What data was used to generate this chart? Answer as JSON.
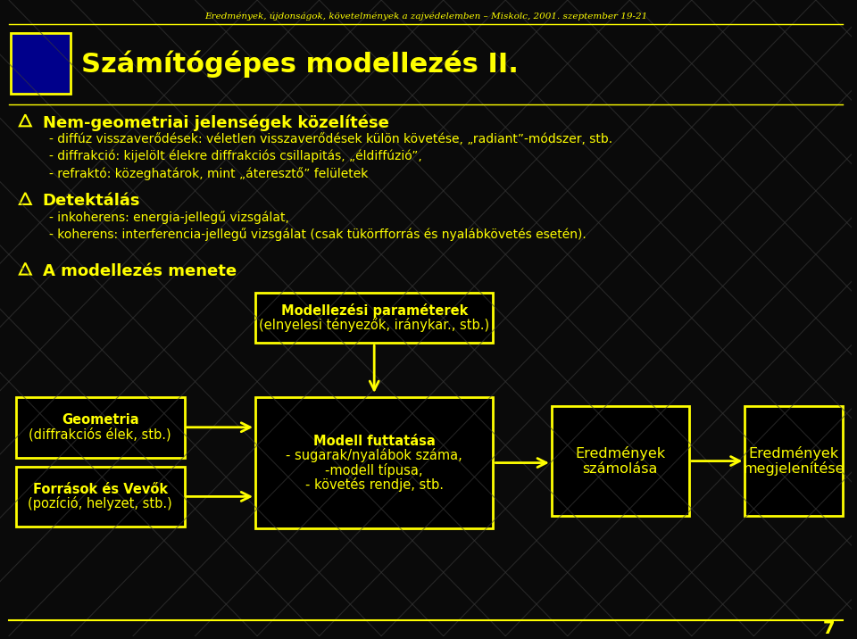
{
  "bg_color": "#0a0a0a",
  "title_text": "Számítógépes modellezés II.",
  "header_text": "Eredmények, újdonságok, követelmények a zajvédelemben – Miskolc, 2001. szeptember 19-21",
  "yellow": "#ffff00",
  "bullet1_title": "Nem-geometriai jelenségek közelítése",
  "bullet1_lines": [
    "- diffúz visszaverődések: véletlen visszaverődések külön követése, „radiant”-módszer, stb.",
    "- diffrakció: kijelölt élekre diffrakciós csillapitás, „éldiffúzió”,",
    "- refraktó: közeghatárok, mint „áteresztő” felületek"
  ],
  "bullet2_title": "Detektálás",
  "bullet2_lines": [
    "- inkoherens: energia-jellegű vizsgálat,",
    "- koherens: interferencia-jellegű vizsgálat (csak tükörfforrás és nyalábkövetés esetén)."
  ],
  "bullet3_title": "A modellezés menete",
  "box_param_lines": [
    "Modellezési paraméterek",
    "(elnyelesi tényezők, iránykar., stb.)"
  ],
  "box_geo_lines": [
    "Geometria",
    "(diffrakciós élek, stb.)"
  ],
  "box_forr_lines": [
    "Források és Vevők",
    "(pozíció, helyzet, stb.)"
  ],
  "box_run_lines": [
    "Modell futtatása",
    "- sugarak/nyalábok száma,",
    "-modell típusa,",
    "- követés rendje, stb."
  ],
  "box_eredm1_lines": [
    "Eredmények",
    "számolása"
  ],
  "box_eredm2_lines": [
    "Eredmények",
    "megjelenítése"
  ],
  "page_num": "7"
}
